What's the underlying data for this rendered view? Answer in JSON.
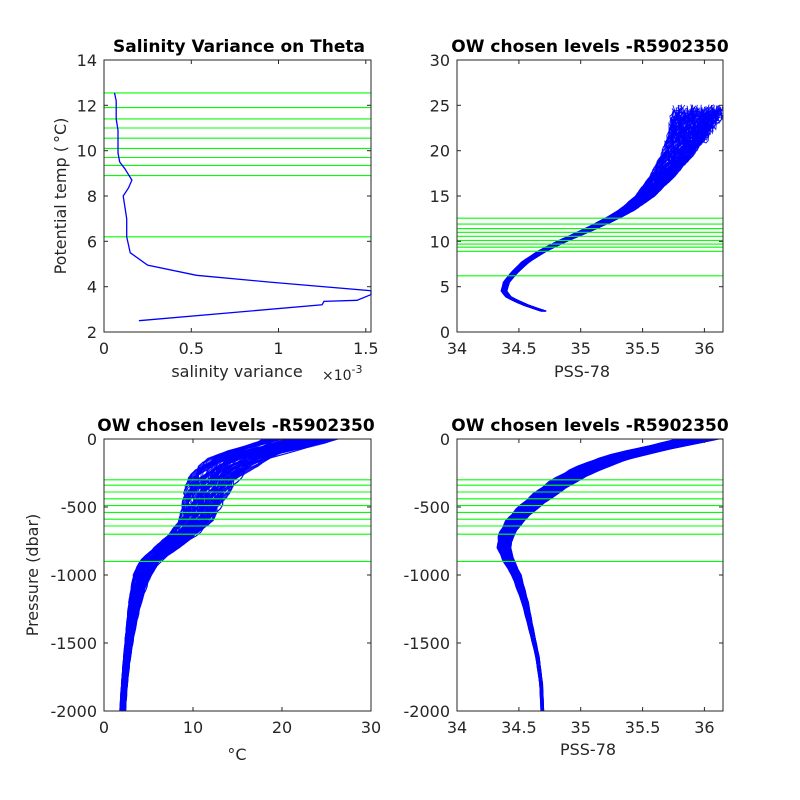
{
  "colors": {
    "profile": "#0000ff",
    "level_line": "#00ff00",
    "axis": "#262626"
  },
  "chart_data": [
    {
      "type": "line",
      "title": "Salinity Variance on Theta",
      "xlabel": "salinity variance",
      "x_exponent_label": "×10",
      "x_exponent_power": "-3",
      "ylabel": "Potential temp ( °C)",
      "ylabel_prefix": "Potential temp (",
      "ylabel_unit": "°C)",
      "xlim": [
        0,
        0.00153
      ],
      "ylim": [
        2,
        14
      ],
      "xtick_values": [
        0,
        0.0005,
        0.001,
        0.0015
      ],
      "xtick_labels": [
        "0",
        "0.5",
        "1",
        "1.5"
      ],
      "ytick_values": [
        2,
        4,
        6,
        8,
        10,
        12,
        14
      ],
      "ytick_labels": [
        "2",
        "4",
        "6",
        "8",
        "10",
        "12",
        "14"
      ],
      "grid": false,
      "hlines": [
        6.2,
        8.9,
        9.35,
        9.7,
        10.1,
        10.55,
        11.0,
        11.4,
        11.9,
        12.55
      ],
      "series": [
        {
          "x": [
            0.0002,
            0.00125,
            0.00126,
            0.00145,
            0.00153,
            0.00153,
            0.00095,
            0.00053,
            0.00025,
            0.00015,
            0.00013,
            0.00013,
            0.00011,
            0.00014,
            0.00016,
            0.00012,
            9e-05,
            8e-05,
            8e-05,
            8e-05,
            7e-05,
            7e-05,
            7e-05,
            6e-05
          ],
          "y": [
            2.5,
            3.2,
            3.35,
            3.4,
            3.65,
            3.82,
            4.2,
            4.5,
            4.95,
            5.5,
            6.2,
            7.0,
            8.0,
            8.35,
            8.7,
            9.2,
            9.5,
            9.9,
            10.4,
            10.9,
            11.4,
            11.9,
            12.2,
            12.55
          ]
        }
      ]
    },
    {
      "type": "line",
      "title": "OW chosen levels -R5902350",
      "xlabel": "PSS-78",
      "ylabel": "",
      "xlim": [
        34,
        36.15
      ],
      "ylim": [
        0,
        30
      ],
      "xtick_values": [
        34,
        34.5,
        35,
        35.5,
        36
      ],
      "xtick_labels": [
        "34",
        "34.5",
        "35",
        "35.5",
        "36"
      ],
      "ytick_values": [
        0,
        5,
        10,
        15,
        20,
        25,
        30
      ],
      "ytick_labels": [
        "0",
        "5",
        "10",
        "15",
        "20",
        "25",
        "30"
      ],
      "grid": false,
      "hlines": [
        6.2,
        8.9,
        9.35,
        9.7,
        10.1,
        10.55,
        11.0,
        11.4,
        11.9,
        12.55
      ],
      "profile_center": {
        "x": [
          34.7,
          34.55,
          34.42,
          34.38,
          34.4,
          34.46,
          34.56,
          34.7,
          34.88,
          35.05,
          35.22,
          35.38,
          35.52,
          35.65,
          35.78,
          35.88,
          35.96
        ],
        "y": [
          2.3,
          3.0,
          3.8,
          4.5,
          5.5,
          6.5,
          7.8,
          9.0,
          10.2,
          11.2,
          12.3,
          13.5,
          15.0,
          17.0,
          19.5,
          22.0,
          24.5
        ]
      },
      "profile_count": 120
    },
    {
      "type": "line",
      "title": "OW chosen levels -R5902350",
      "xlabel": "°C",
      "ylabel": "Pressure (dbar)",
      "xlim": [
        0,
        30
      ],
      "ylim": [
        -2000,
        0
      ],
      "xtick_values": [
        0,
        10,
        20,
        30
      ],
      "xtick_labels": [
        "0",
        "10",
        "20",
        "30"
      ],
      "ytick_values": [
        -2000,
        -1500,
        -1000,
        -500,
        0
      ],
      "ytick_labels": [
        "-2000",
        "-1500",
        "-1000",
        "-500",
        "0"
      ],
      "grid": false,
      "hlines": [
        -300,
        -340,
        -390,
        -440,
        -490,
        -540,
        -590,
        -640,
        -700,
        -900
      ],
      "profile_center": {
        "x": [
          22.0,
          20.0,
          17.0,
          15.0,
          13.5,
          12.3,
          11.5,
          11.0,
          10.3,
          9.0,
          7.0,
          5.2,
          4.3,
          3.5,
          3.0,
          2.6,
          2.3,
          2.1
        ],
        "y": [
          0,
          -50,
          -100,
          -150,
          -220,
          -300,
          -400,
          -500,
          -600,
          -700,
          -800,
          -900,
          -1000,
          -1200,
          -1400,
          -1600,
          -1800,
          -2000
        ]
      },
      "profile_count": 120
    },
    {
      "type": "line",
      "title": "OW chosen levels -R5902350",
      "xlabel": "PSS-78",
      "ylabel": "",
      "xlim": [
        34,
        36.15
      ],
      "ylim": [
        -2000,
        0
      ],
      "xtick_values": [
        34,
        34.5,
        35,
        35.5,
        36
      ],
      "xtick_labels": [
        "34",
        "34.5",
        "35",
        "35.5",
        "36"
      ],
      "ytick_values": [
        -2000,
        -1500,
        -1000,
        -500,
        0
      ],
      "ytick_labels": [
        "-2000",
        "-1500",
        "-1000",
        "-500",
        "0"
      ],
      "grid": false,
      "hlines": [
        -300,
        -340,
        -390,
        -440,
        -490,
        -540,
        -590,
        -640,
        -700,
        -900
      ],
      "profile_center": {
        "x": [
          35.95,
          35.7,
          35.45,
          35.25,
          35.05,
          34.88,
          34.72,
          34.58,
          34.47,
          34.4,
          34.38,
          34.42,
          34.48,
          34.55,
          34.6,
          34.65,
          34.68,
          34.69
        ],
        "y": [
          0,
          -50,
          -100,
          -150,
          -220,
          -300,
          -400,
          -500,
          -600,
          -700,
          -800,
          -900,
          -1000,
          -1200,
          -1400,
          -1600,
          -1800,
          -2000
        ]
      },
      "profile_count": 120
    }
  ]
}
